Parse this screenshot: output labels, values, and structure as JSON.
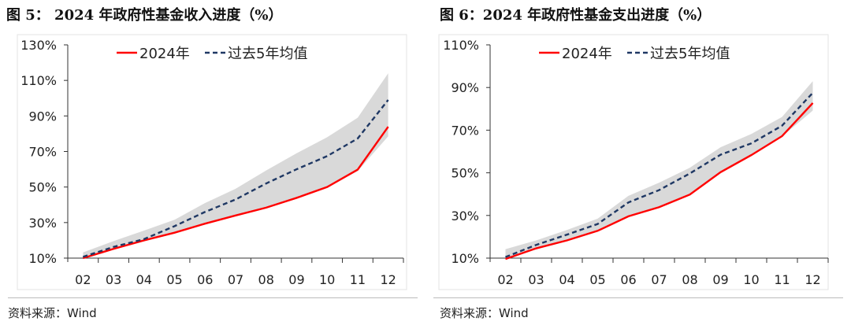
{
  "chart_data": [
    {
      "type": "area",
      "title": "图 5：  2024 年政府性基金收入进度（%）",
      "source": "资料来源：Wind",
      "categories": [
        "02",
        "03",
        "04",
        "05",
        "06",
        "07",
        "08",
        "09",
        "10",
        "11",
        "12"
      ],
      "yticks": [
        "10%",
        "30%",
        "50%",
        "70%",
        "90%",
        "110%",
        "130%"
      ],
      "ylim": [
        10,
        130
      ],
      "grid": false,
      "legend": "top",
      "series": [
        {
          "name": "2024年",
          "color": "#ff0000",
          "style": "solid",
          "values": [
            10,
            15.2,
            20,
            24.3,
            29.4,
            34,
            38.4,
            43.9,
            50,
            59.8,
            83.9
          ]
        },
        {
          "name": "过去5年均值",
          "color": "#1f3864",
          "style": "dashed",
          "values": [
            10.7,
            16.3,
            20.7,
            28,
            36,
            43,
            52,
            60,
            67.4,
            77.3,
            99
          ]
        }
      ],
      "band": {
        "color": "#d9d9d9",
        "upper": [
          13.2,
          19.6,
          25.5,
          31.6,
          41,
          49,
          59.3,
          69,
          78,
          89,
          114
        ],
        "lower": [
          10,
          15,
          19.8,
          24,
          29.2,
          33.8,
          38.2,
          43.7,
          49.8,
          59,
          78.5
        ]
      }
    },
    {
      "type": "area",
      "title": "图 6：2024 年政府性基金支出进度（%）",
      "source": "资料来源：Wind",
      "categories": [
        "02",
        "03",
        "04",
        "05",
        "06",
        "07",
        "08",
        "09",
        "10",
        "11",
        "12"
      ],
      "yticks": [
        "10%",
        "30%",
        "50%",
        "70%",
        "90%",
        "110%"
      ],
      "ylim": [
        10,
        110
      ],
      "grid": false,
      "legend": "top",
      "series": [
        {
          "name": "2024年",
          "color": "#ff0000",
          "style": "solid",
          "values": [
            9.6,
            14.6,
            18.3,
            22.8,
            29.6,
            33.9,
            39.8,
            50.3,
            58.3,
            67.2,
            82.7
          ]
        },
        {
          "name": "过去5年均值",
          "color": "#1f3864",
          "style": "dashed",
          "values": [
            10.5,
            16.2,
            21,
            26,
            36.1,
            41.9,
            49.7,
            58.5,
            63.8,
            72.1,
            87.5
          ]
        }
      ],
      "band": {
        "color": "#d9d9d9",
        "upper": [
          14.2,
          18.3,
          23.2,
          28.5,
          39.2,
          45.4,
          52.4,
          62,
          68.2,
          76.2,
          93
        ],
        "lower": [
          9.5,
          14,
          18,
          22.5,
          29.5,
          33.8,
          39.5,
          50,
          58,
          67,
          79.2
        ]
      }
    }
  ]
}
